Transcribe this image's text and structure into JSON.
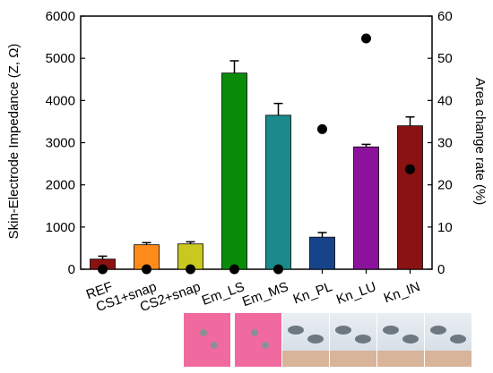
{
  "chart_data": {
    "type": "bar",
    "categories": [
      "REF",
      "CS1+snap",
      "CS2+snap",
      "Em_LS",
      "Em_MS",
      "Kn_PL",
      "Kn_LU",
      "Kn_IN"
    ],
    "series": [
      {
        "axis": "left",
        "values": [
          240,
          580,
          600,
          4650,
          3650,
          760,
          2900,
          3400
        ],
        "errors": [
          70,
          50,
          50,
          290,
          280,
          110,
          60,
          210
        ]
      },
      {
        "axis": "right",
        "values": [
          0,
          0,
          0,
          0,
          0,
          33.2,
          54.7,
          23.7
        ]
      }
    ],
    "bar_colors": [
      "#8b1212",
      "#ff8c1a",
      "#c8c820",
      "#0a8c0a",
      "#1a8a8a",
      "#16438a",
      "#8b139b",
      "#8b1212"
    ],
    "marker_color": "#000000",
    "ylabel": "Skin-Electrode Impedance (Z, Ω)",
    "y2label": "Area change rate (%)",
    "ylim": [
      0,
      6000
    ],
    "y2lim": [
      0,
      60
    ],
    "yticks": [
      0,
      1000,
      2000,
      3000,
      4000,
      5000,
      6000
    ],
    "y2ticks": [
      0,
      10,
      20,
      30,
      40,
      50,
      60
    ],
    "grid": false
  },
  "photos": [
    {
      "style": "pink",
      "icon": "garment-photo"
    },
    {
      "style": "pink",
      "icon": "garment-photo"
    },
    {
      "style": "white",
      "icon": "garment-photo"
    },
    {
      "style": "white",
      "icon": "garment-photo"
    },
    {
      "style": "white",
      "icon": "garment-photo"
    },
    {
      "style": "white",
      "icon": "garment-photo"
    }
  ]
}
